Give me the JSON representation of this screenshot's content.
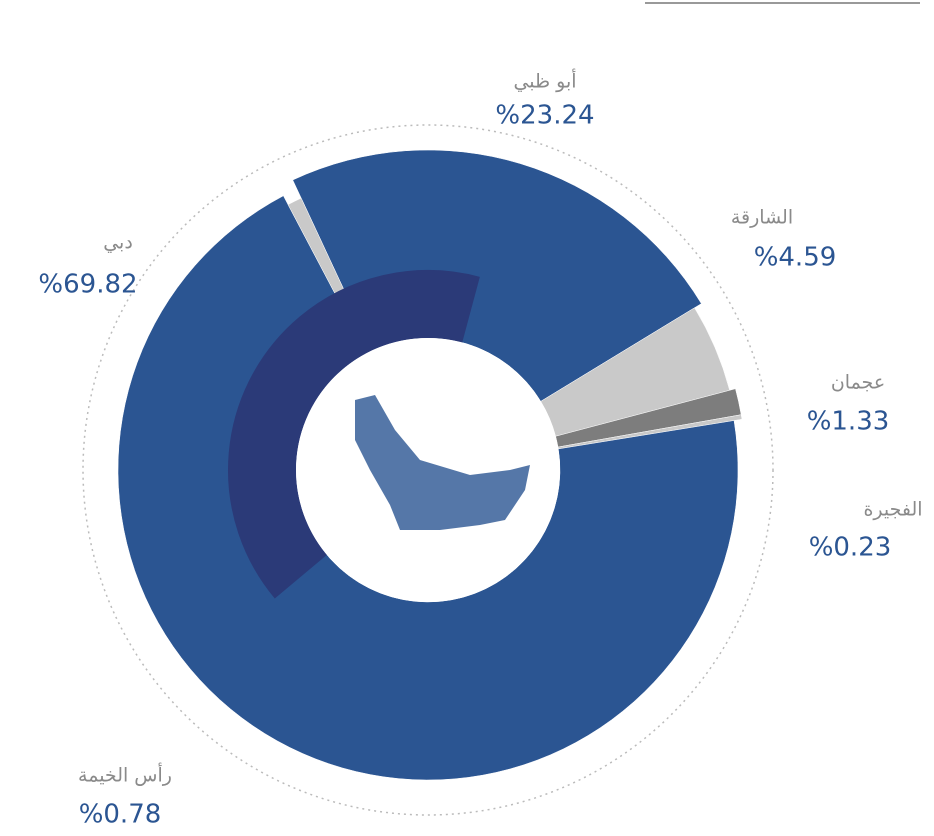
{
  "chart_data": {
    "type": "pie",
    "categories": [
      "أبو ظبي",
      "الشارقة",
      "عجمان",
      "الفجيرة",
      "دبي",
      "رأس الخيمة"
    ],
    "values": [
      23.24,
      4.59,
      1.33,
      0.23,
      69.82,
      0.78
    ],
    "value_labels": [
      "%23.24",
      "%4.59",
      "%1.33",
      "%0.23",
      "%69.82",
      "%0.78"
    ],
    "colors": [
      "#2b5592",
      "#c9c9c9",
      "#7d7d7d",
      "#c9c9c9",
      "#2b5592",
      "#c9c9c9"
    ]
  }
}
